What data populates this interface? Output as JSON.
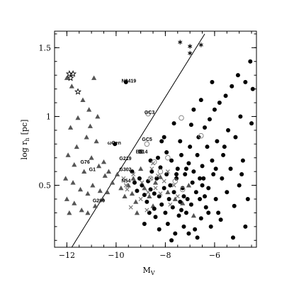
{
  "chart_data": {
    "type": "scatter",
    "xlabel": "M",
    "xlabel_sub": "V",
    "ylabel": "log r",
    "ylabel_sub": "h",
    "ylabel_unit": "[pc]",
    "xlim": [
      -12.5,
      -4.3
    ],
    "ylim": [
      0.05,
      1.62
    ],
    "x_ticks": [
      -12,
      -10,
      -8,
      -6
    ],
    "y_ticks": [
      0.5,
      1,
      1.5
    ],
    "x_tick_labels": [
      "−12",
      "−10",
      "−8",
      "−6"
    ],
    "y_tick_labels": [
      "0.5",
      "1",
      "1.5"
    ],
    "grid": false,
    "reference_line": {
      "x": [
        -11.8,
        -6.4
      ],
      "y": [
        0.05,
        1.6
      ]
    },
    "object_labels": [
      {
        "text": "N2419",
        "x": -9.78,
        "y": 1.26
      },
      {
        "text": "GC3",
        "x": -8.85,
        "y": 1.03
      },
      {
        "text": "ωCen",
        "x": -10.35,
        "y": 0.81
      },
      {
        "text": "GC5",
        "x": -8.95,
        "y": 0.835
      },
      {
        "text": "B514",
        "x": -9.2,
        "y": 0.745
      },
      {
        "text": "G219",
        "x": -9.87,
        "y": 0.695
      },
      {
        "text": "G76",
        "x": -11.45,
        "y": 0.67
      },
      {
        "text": "G1",
        "x": -11.1,
        "y": 0.615
      },
      {
        "text": "G302",
        "x": -9.87,
        "y": 0.615
      },
      {
        "text": "N54",
        "x": -9.78,
        "y": 0.535
      },
      {
        "text": "G280",
        "x": -10.95,
        "y": 0.39
      }
    ],
    "series": [
      {
        "name": "",
        "marker": "triangle",
        "color": "#555555",
        "points": [
          [
            -12.0,
            1.28
          ],
          [
            -11.8,
            1.22
          ],
          [
            -11.35,
            1.12
          ],
          [
            -11.1,
            1.05
          ],
          [
            -10.9,
            1.28
          ],
          [
            -11.55,
            0.99
          ],
          [
            -11.05,
            0.93
          ],
          [
            -11.85,
            0.92
          ],
          [
            -10.75,
            1.0
          ],
          [
            -11.95,
            0.72
          ],
          [
            -11.6,
            0.78
          ],
          [
            -11.2,
            0.85
          ],
          [
            -10.8,
            0.82
          ],
          [
            -11.7,
            0.65
          ],
          [
            -11.3,
            0.6
          ],
          [
            -11.0,
            0.7
          ],
          [
            -10.7,
            0.64
          ],
          [
            -12.05,
            0.55
          ],
          [
            -11.75,
            0.52
          ],
          [
            -11.45,
            0.47
          ],
          [
            -11.15,
            0.44
          ],
          [
            -10.95,
            0.5
          ],
          [
            -10.65,
            0.46
          ],
          [
            -10.45,
            0.57
          ],
          [
            -12.0,
            0.4
          ],
          [
            -11.7,
            0.37
          ],
          [
            -11.4,
            0.32
          ],
          [
            -11.15,
            0.3
          ],
          [
            -10.85,
            0.35
          ],
          [
            -10.55,
            0.4
          ],
          [
            -10.35,
            0.45
          ],
          [
            -10.15,
            0.52
          ],
          [
            -10.3,
            0.6
          ],
          [
            -9.95,
            0.58
          ],
          [
            -9.8,
            0.48
          ],
          [
            -9.65,
            0.42
          ],
          [
            -9.5,
            0.5
          ],
          [
            -9.35,
            0.44
          ],
          [
            -9.2,
            0.38
          ],
          [
            -9.3,
            0.55
          ],
          [
            -9.0,
            0.62
          ],
          [
            -8.85,
            0.48
          ],
          [
            -8.65,
            0.42
          ],
          [
            -8.5,
            0.35
          ],
          [
            -8.4,
            0.52
          ],
          [
            -7.9,
            0.45
          ],
          [
            -7.6,
            0.4
          ],
          [
            -7.3,
            0.37
          ],
          [
            -7.05,
            0.5
          ],
          [
            -6.85,
            0.28
          ],
          [
            -11.9,
            0.3
          ],
          [
            -10.5,
            0.67
          ],
          [
            -9.15,
            0.3
          ],
          [
            -8.2,
            0.56
          ]
        ]
      },
      {
        "name": "",
        "marker": "filled-circle",
        "color": "#000000",
        "points": [
          [
            -9.6,
            1.25
          ],
          [
            -10.05,
            0.8
          ],
          [
            -9.35,
            0.6
          ],
          [
            -9.25,
            0.52
          ],
          [
            -9.15,
            0.46
          ],
          [
            -9.05,
            0.55
          ],
          [
            -8.95,
            0.5
          ],
          [
            -8.85,
            0.43
          ],
          [
            -8.75,
            0.38
          ],
          [
            -8.7,
            0.53
          ],
          [
            -8.6,
            0.47
          ],
          [
            -8.55,
            0.6
          ],
          [
            -8.45,
            0.33
          ],
          [
            -8.4,
            0.27
          ],
          [
            -8.35,
            0.55
          ],
          [
            -8.25,
            0.42
          ],
          [
            -8.2,
            0.63
          ],
          [
            -8.15,
            0.36
          ],
          [
            -8.05,
            0.48
          ],
          [
            -8.0,
            0.3
          ],
          [
            -7.95,
            0.58
          ],
          [
            -7.9,
            0.22
          ],
          [
            -7.85,
            0.4
          ],
          [
            -7.8,
            0.5
          ],
          [
            -7.75,
            0.68
          ],
          [
            -7.7,
            0.34
          ],
          [
            -7.65,
            0.45
          ],
          [
            -7.6,
            0.15
          ],
          [
            -7.55,
            0.55
          ],
          [
            -7.5,
            0.62
          ],
          [
            -7.45,
            0.28
          ],
          [
            -7.4,
            0.38
          ],
          [
            -7.35,
            0.72
          ],
          [
            -7.3,
            0.48
          ],
          [
            -7.25,
            0.2
          ],
          [
            -7.2,
            0.58
          ],
          [
            -7.15,
            0.3
          ],
          [
            -7.1,
            0.4
          ],
          [
            -7.05,
            0.66
          ],
          [
            -7.0,
            0.78
          ],
          [
            -6.95,
            0.36
          ],
          [
            -6.9,
            0.52
          ],
          [
            -6.85,
            0.6
          ],
          [
            -6.8,
            0.18
          ],
          [
            -6.75,
            0.45
          ],
          [
            -6.7,
            0.72
          ],
          [
            -6.65,
            0.85
          ],
          [
            -6.6,
            0.4
          ],
          [
            -6.55,
            0.26
          ],
          [
            -6.5,
            0.64
          ],
          [
            -6.45,
            0.55
          ],
          [
            -6.4,
            0.92
          ],
          [
            -6.35,
            0.34
          ],
          [
            -6.3,
            0.78
          ],
          [
            -6.25,
            0.48
          ],
          [
            -6.2,
            0.98
          ],
          [
            -6.15,
            0.2
          ],
          [
            -6.1,
            0.68
          ],
          [
            -6.05,
            0.58
          ],
          [
            -6.0,
            1.05
          ],
          [
            -5.95,
            0.4
          ],
          [
            -5.9,
            0.82
          ],
          [
            -5.85,
            0.3
          ],
          [
            -5.8,
            1.1
          ],
          [
            -5.7,
            0.55
          ],
          [
            -5.65,
            0.72
          ],
          [
            -5.55,
            1.15
          ],
          [
            -5.5,
            0.45
          ],
          [
            -5.45,
            0.9
          ],
          [
            -5.35,
            0.62
          ],
          [
            -5.3,
            1.22
          ],
          [
            -5.2,
            0.35
          ],
          [
            -5.15,
            0.85
          ],
          [
            -5.05,
            1.3
          ],
          [
            -5.0,
            0.5
          ],
          [
            -4.95,
            1.0
          ],
          [
            -4.85,
            0.68
          ],
          [
            -4.75,
            1.25
          ],
          [
            -4.65,
            0.4
          ],
          [
            -4.55,
            1.4
          ],
          [
            -4.5,
            0.95
          ],
          [
            -4.45,
            1.2
          ],
          [
            -4.75,
            0.2
          ],
          [
            -6.1,
            1.25
          ],
          [
            -7.75,
            0.1
          ],
          [
            -8.05,
            0.85
          ],
          [
            -7.65,
            0.95
          ],
          [
            -6.85,
            1.05
          ],
          [
            -6.55,
            1.12
          ],
          [
            -7.4,
            0.82
          ],
          [
            -6.95,
            0.94
          ],
          [
            -7.15,
            0.62
          ],
          [
            -7.95,
            0.74
          ],
          [
            -8.15,
            0.82
          ],
          [
            -8.3,
            0.7
          ],
          [
            -7.55,
            0.58
          ],
          [
            -6.4,
            0.42
          ],
          [
            -6.25,
            0.3
          ],
          [
            -5.75,
            0.25
          ],
          [
            -5.25,
            0.12
          ],
          [
            -6.7,
            0.12
          ],
          [
            -7.05,
            0.15
          ],
          [
            -8.65,
            0.3
          ],
          [
            -8.85,
            0.22
          ],
          [
            -8.25,
            0.18
          ],
          [
            -7.35,
            0.32
          ],
          [
            -6.6,
            0.55
          ],
          [
            -5.95,
            0.62
          ],
          [
            -5.6,
            0.78
          ],
          [
            -8.6,
            0.68
          ],
          [
            -8.45,
            0.44
          ],
          [
            -7.25,
            0.42
          ],
          [
            -6.5,
            0.5
          ],
          [
            -4.9,
            0.58
          ]
        ]
      },
      {
        "name": "",
        "marker": "cross",
        "color": "#777777",
        "points": [
          [
            -9.55,
            0.47
          ],
          [
            -9.7,
            0.55
          ],
          [
            -9.6,
            0.5
          ],
          [
            -9.3,
            0.58
          ],
          [
            -9.0,
            0.4
          ],
          [
            -8.95,
            0.52
          ],
          [
            -8.7,
            0.45
          ],
          [
            -8.55,
            0.62
          ],
          [
            -8.4,
            0.48
          ],
          [
            -8.3,
            0.57
          ],
          [
            -8.2,
            0.44
          ],
          [
            -8.05,
            0.53
          ],
          [
            -7.9,
            0.6
          ],
          [
            -7.8,
            0.36
          ],
          [
            -7.65,
            0.5
          ],
          [
            -7.5,
            0.42
          ],
          [
            -8.75,
            0.32
          ],
          [
            -9.4,
            0.34
          ],
          [
            -8.6,
            0.55
          ],
          [
            -8.5,
            0.66
          ]
        ]
      },
      {
        "name": "",
        "marker": "open-circle",
        "color": "#888888",
        "points": [
          [
            -8.7,
            1.02
          ],
          [
            -7.35,
            0.99
          ],
          [
            -6.55,
            0.86
          ],
          [
            -8.75,
            0.8
          ],
          [
            -8.45,
            0.67
          ],
          [
            -8.2,
            0.6
          ],
          [
            -8.6,
            0.55
          ],
          [
            -7.9,
            0.7
          ],
          [
            -7.6,
            0.53
          ],
          [
            -7.3,
            0.47
          ]
        ]
      },
      {
        "name": "",
        "marker": "star",
        "color": "#000000",
        "points": [
          [
            -11.9,
            1.31
          ],
          [
            -11.75,
            1.31
          ],
          [
            -11.85,
            1.28
          ],
          [
            -11.55,
            1.18
          ]
        ]
      },
      {
        "name": "",
        "marker": "asterisk",
        "color": "#000000",
        "points": [
          [
            -7.4,
            1.54
          ],
          [
            -7.0,
            1.51
          ],
          [
            -7.0,
            1.46
          ],
          [
            -6.55,
            1.52
          ]
        ]
      },
      {
        "name": "",
        "marker": "filled-square",
        "color": "#555555",
        "points": [
          [
            -9.0,
            0.745
          ]
        ]
      }
    ]
  }
}
